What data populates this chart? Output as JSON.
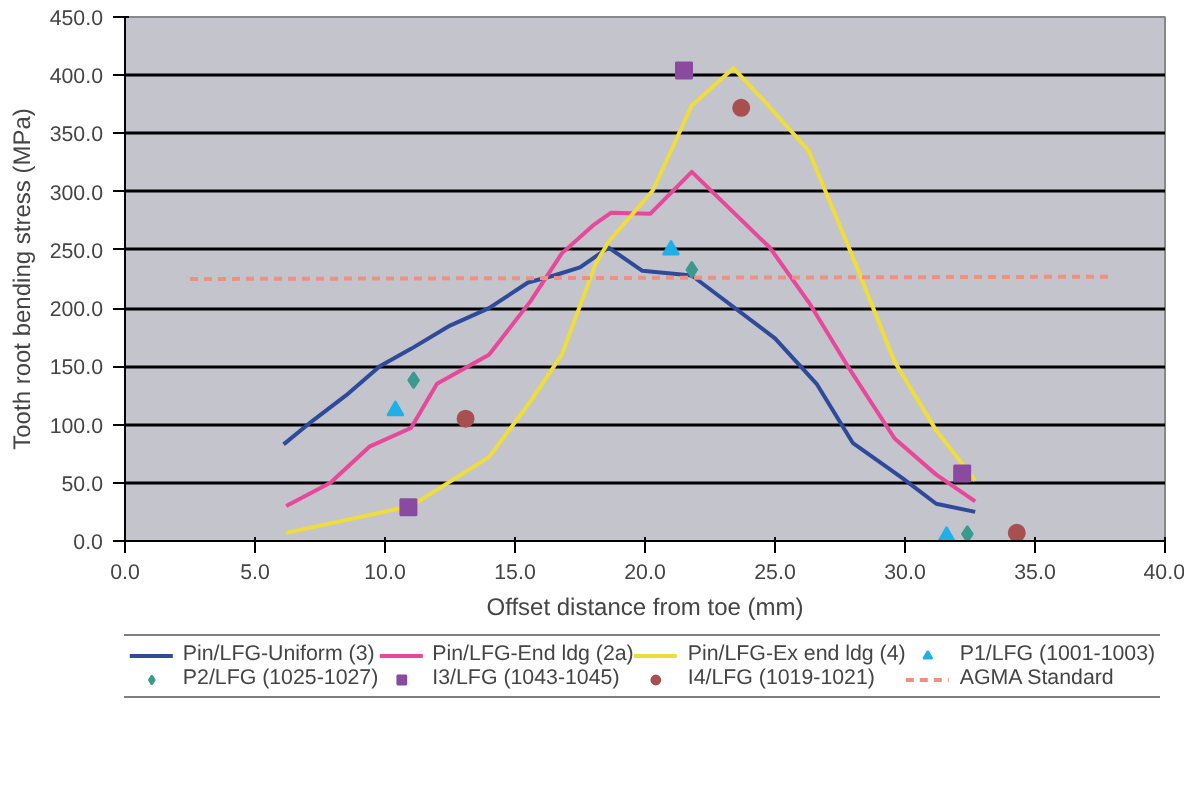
{
  "chart_data": {
    "type": "line",
    "xlabel": "Offset distance from toe (mm)",
    "ylabel": "Tooth root bending stress (MPa)",
    "xlim": [
      0,
      40
    ],
    "ylim": [
      0,
      450
    ],
    "xticks": [
      {
        "value": 0,
        "label": "0.0"
      },
      {
        "value": 5,
        "label": "5.0"
      },
      {
        "value": 10,
        "label": "10.0"
      },
      {
        "value": 15,
        "label": "15.0"
      },
      {
        "value": 20,
        "label": "20.0"
      },
      {
        "value": 25,
        "label": "25.0"
      },
      {
        "value": 30,
        "label": "30.0"
      },
      {
        "value": 35,
        "label": "35.0"
      },
      {
        "value": 40,
        "label": "40.0"
      }
    ],
    "yticks": [
      {
        "value": 0,
        "label": "0.0"
      },
      {
        "value": 50,
        "label": "50.0"
      },
      {
        "value": 100,
        "label": "100.0"
      },
      {
        "value": 150,
        "label": "150.0"
      },
      {
        "value": 200,
        "label": "200.0"
      },
      {
        "value": 250,
        "label": "250.0"
      },
      {
        "value": 300,
        "label": "300.0"
      },
      {
        "value": 350,
        "label": "350.0"
      },
      {
        "value": 400,
        "label": "400.0"
      },
      {
        "value": 450,
        "label": "450.0"
      }
    ],
    "grid": "y",
    "legend": "bottom",
    "series": [
      {
        "name": "Pin/LFG-Uniform (3)",
        "color": "#2e4a9a",
        "line_style": "solid",
        "x": [
          6.1,
          7.2,
          8.5,
          9.8,
          11,
          12.5,
          14,
          15.5,
          16.5,
          17.5,
          18.6,
          19.9,
          21.8,
          25.0,
          26.6,
          28.0,
          29.9,
          31.2,
          32.7
        ],
        "values": [
          83,
          103,
          125,
          150,
          165,
          185,
          200,
          222,
          228,
          235,
          252,
          232,
          228,
          174,
          135,
          84,
          54,
          32,
          25
        ]
      },
      {
        "name": "Pin/LFG-End ldg (2a)",
        "color": "#e8489a",
        "line_style": "solid",
        "x": [
          6.2,
          7.9,
          9.4,
          11.0,
          12.0,
          14.0,
          15.6,
          16.8,
          18.0,
          18.7,
          20.2,
          21.8,
          24.8,
          26.3,
          27.8,
          29.6,
          31.2,
          32.7
        ],
        "values": [
          30,
          50,
          81,
          97,
          135,
          160,
          206,
          247,
          271,
          282,
          281,
          317,
          252,
          205,
          150,
          88,
          57,
          34
        ]
      },
      {
        "name": "Pin/LFG-Ex end ldg (4)",
        "color": "#eedd3a",
        "line_style": "solid",
        "x": [
          6.2,
          11.0,
          12.5,
          14.0,
          15.6,
          16.8,
          18.1,
          18.6,
          20.3,
          21.8,
          23.4,
          24.5,
          26.3,
          28.1,
          29.6,
          31.2,
          32.7
        ],
        "values": [
          7,
          30,
          51,
          72,
          120,
          160,
          238,
          257,
          301,
          374,
          406,
          380,
          335,
          238,
          154,
          95,
          52
        ]
      },
      {
        "name": "P1/LFG (1001-1003)",
        "type": "scatter",
        "marker": "triangle",
        "color": "#20b0e8",
        "x": [
          10.4,
          21.0,
          31.6
        ],
        "values": [
          112,
          250,
          4
        ]
      },
      {
        "name": "P2/LFG (1025-1027)",
        "type": "scatter",
        "marker": "diamond",
        "color": "#3a9a90",
        "x": [
          11.1,
          21.8,
          32.4
        ],
        "values": [
          138,
          233,
          6
        ]
      },
      {
        "name": "I3/LFG (1043-1045)",
        "type": "scatter",
        "marker": "square",
        "color": "#8a4aa0",
        "x": [
          10.9,
          21.5,
          32.2
        ],
        "values": [
          29,
          404,
          58
        ]
      },
      {
        "name": "I4/LFG (1019-1021)",
        "type": "scatter",
        "marker": "circle",
        "color": "#a85050",
        "x": [
          13.1,
          23.7,
          34.3
        ],
        "values": [
          105,
          372,
          7
        ]
      },
      {
        "name": "AGMA Standard",
        "color": "#f09080",
        "line_style": "dashed",
        "x": [
          2.5,
          38
        ],
        "values": [
          225,
          227
        ]
      }
    ]
  }
}
